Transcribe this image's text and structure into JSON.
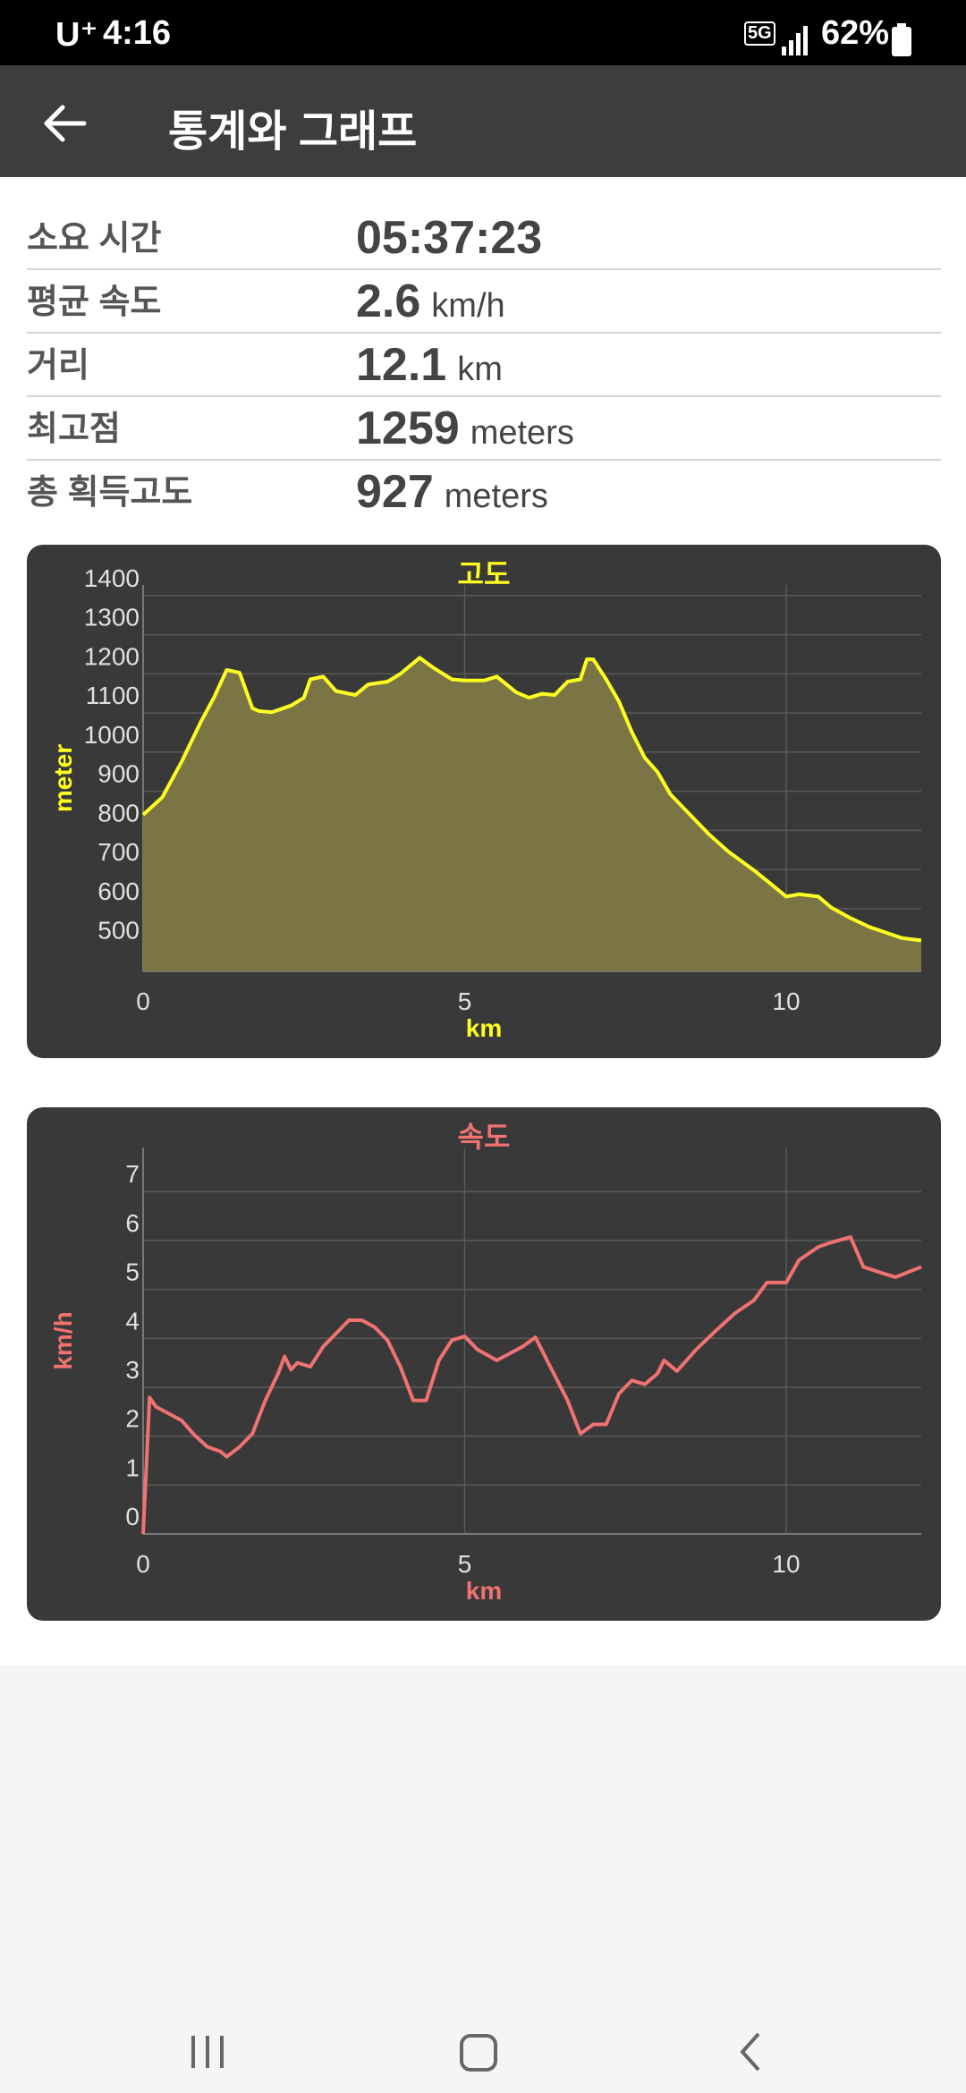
{
  "status_bar": {
    "carrier": "U⁺",
    "time": "4:16",
    "network": "5G",
    "battery": "62%"
  },
  "app_bar": {
    "title": "통계와 그래프"
  },
  "stats": [
    {
      "label": "소요 시간",
      "value": "05:37:23"
    },
    {
      "label": "평균 속도",
      "value": 2.6,
      "unit": "km/h"
    },
    {
      "label": "거리",
      "value": 12.1,
      "unit": "km"
    },
    {
      "label": "최고점",
      "value": 1259,
      "unit": "meters"
    },
    {
      "label": "총 획득고도",
      "value": 927,
      "unit": "meters"
    }
  ],
  "chart_data": [
    {
      "type": "line",
      "title": "고도",
      "x_label": "km",
      "y_label": "meter",
      "x": [
        0,
        0.3,
        0.6,
        0.9,
        1.1,
        1.3,
        1.5,
        1.7,
        1.8,
        2.0,
        2.3,
        2.5,
        2.6,
        2.8,
        3.0,
        3.3,
        3.5,
        3.8,
        4.0,
        4.3,
        4.5,
        4.8,
        5.0,
        5.3,
        5.5,
        5.8,
        6.0,
        6.2,
        6.4,
        6.6,
        6.8,
        6.9,
        7.0,
        7.2,
        7.4,
        7.6,
        7.8,
        8.0,
        8.2,
        8.5,
        8.8,
        9.1,
        9.5,
        9.8,
        10.0,
        10.2,
        10.5,
        10.7,
        11.0,
        11.3,
        11.5,
        11.8,
        12.1
      ],
      "values": [
        840,
        885,
        976,
        1078,
        1139,
        1210,
        1203,
        1112,
        1105,
        1102,
        1119,
        1139,
        1186,
        1193,
        1156,
        1146,
        1173,
        1180,
        1200,
        1241,
        1217,
        1186,
        1183,
        1183,
        1193,
        1153,
        1139,
        1149,
        1146,
        1180,
        1186,
        1237,
        1237,
        1186,
        1129,
        1051,
        986,
        949,
        892,
        841,
        790,
        746,
        698,
        658,
        631,
        637,
        631,
        603,
        576,
        553,
        542,
        525,
        519
      ],
      "color": "#ffff22",
      "area": true,
      "area_color": "#7b7545",
      "xlim": [
        0,
        12.1
      ],
      "ylim": [
        440,
        1427
      ],
      "xticks": [
        0,
        5,
        10
      ],
      "yticks": [
        500,
        600,
        700,
        800,
        900,
        1000,
        1100,
        1200,
        1300,
        1400
      ],
      "grid": true
    },
    {
      "type": "line",
      "title": "속도",
      "x_label": "km",
      "y_label": "km/h",
      "x": [
        0,
        0.05,
        0.1,
        0.2,
        0.4,
        0.6,
        0.8,
        1.0,
        1.2,
        1.3,
        1.5,
        1.7,
        1.9,
        2.1,
        2.2,
        2.3,
        2.4,
        2.6,
        2.8,
        3.0,
        3.2,
        3.4,
        3.6,
        3.8,
        4.0,
        4.2,
        4.4,
        4.6,
        4.8,
        5.0,
        5.2,
        5.5,
        5.7,
        5.9,
        6.1,
        6.3,
        6.6,
        6.8,
        7.0,
        7.2,
        7.4,
        7.6,
        7.8,
        8.0,
        8.1,
        8.3,
        8.6,
        8.9,
        9.2,
        9.5,
        9.7,
        10.0,
        10.2,
        10.5,
        10.7,
        11.0,
        11.2,
        11.5,
        11.7,
        12.1
      ],
      "values": [
        0,
        1.37,
        2.79,
        2.6,
        2.46,
        2.32,
        2.02,
        1.78,
        1.69,
        1.58,
        1.78,
        2.05,
        2.73,
        3.28,
        3.63,
        3.36,
        3.5,
        3.42,
        3.83,
        4.1,
        4.37,
        4.37,
        4.23,
        3.96,
        3.42,
        2.73,
        2.73,
        3.55,
        3.96,
        4.04,
        3.77,
        3.55,
        3.69,
        3.83,
        4.02,
        3.5,
        2.73,
        2.05,
        2.24,
        2.24,
        2.87,
        3.14,
        3.06,
        3.28,
        3.55,
        3.33,
        3.77,
        4.15,
        4.51,
        4.78,
        5.14,
        5.14,
        5.6,
        5.87,
        5.96,
        6.07,
        5.46,
        5.33,
        5.25,
        5.46
      ],
      "color": "#f07272",
      "area": false,
      "xlim": [
        0,
        12.1
      ],
      "ylim": [
        0,
        7.9
      ],
      "xticks": [
        0,
        5,
        10
      ],
      "yticks": [
        0,
        1,
        2,
        3,
        4,
        5,
        6,
        7
      ],
      "grid": true
    }
  ]
}
